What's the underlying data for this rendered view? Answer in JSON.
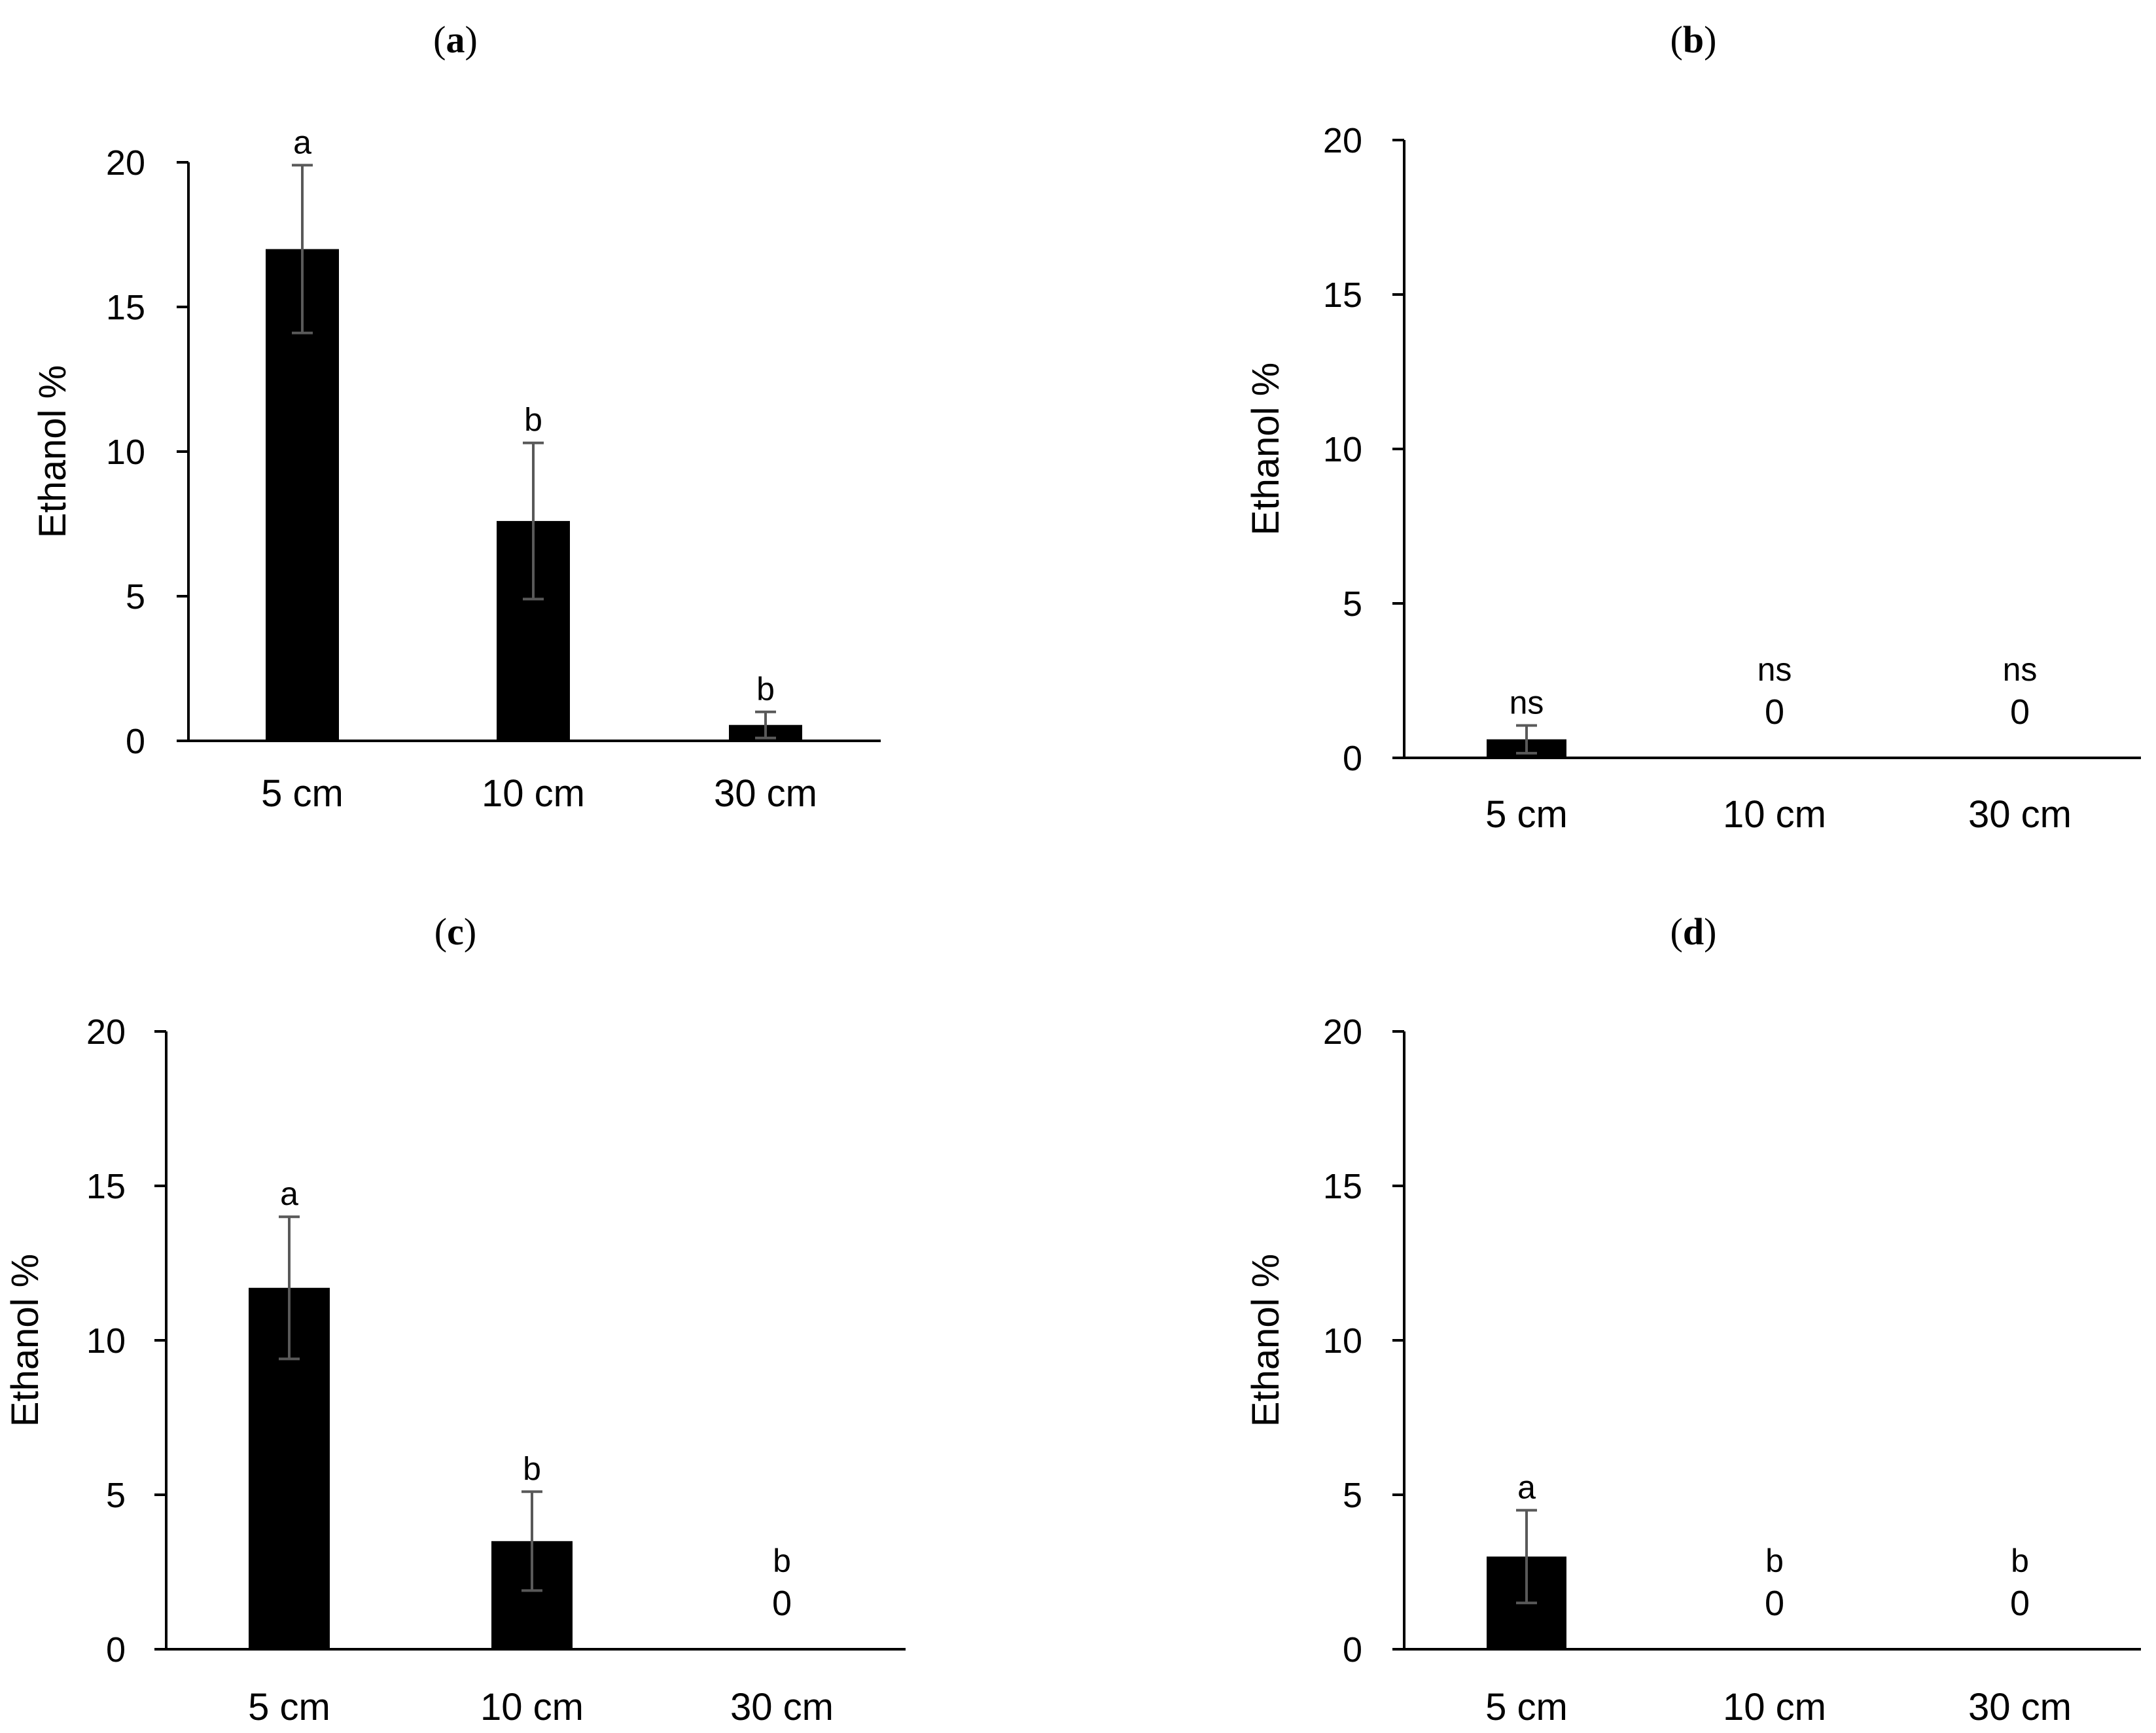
{
  "chart_data": [
    {
      "type": "bar",
      "panel_label": "a",
      "ylabel": "Ethanol %",
      "ylim": [
        0,
        20
      ],
      "yticks": [
        "0",
        "5",
        "10",
        "15",
        "20"
      ],
      "categories": [
        "5 cm",
        "10 cm",
        "30 cm"
      ],
      "values": [
        17.0,
        7.6,
        0.55
      ],
      "errors": [
        2.9,
        2.7,
        0.45
      ],
      "significance": [
        "a",
        "b",
        "b"
      ],
      "value_labels": [
        "",
        "",
        ""
      ]
    },
    {
      "type": "bar",
      "panel_label": "b",
      "ylabel": "Ethanol %",
      "ylim": [
        0,
        20
      ],
      "yticks": [
        "0",
        "5",
        "10",
        "15",
        "20"
      ],
      "categories": [
        "5 cm",
        "10 cm",
        "30 cm"
      ],
      "values": [
        0.6,
        0,
        0
      ],
      "errors": [
        0.45,
        0,
        0
      ],
      "significance": [
        "ns",
        "ns",
        "ns"
      ],
      "value_labels": [
        "",
        "0",
        "0"
      ]
    },
    {
      "type": "bar",
      "panel_label": "c",
      "ylabel": "Ethanol %",
      "ylim": [
        0,
        20
      ],
      "yticks": [
        "0",
        "5",
        "10",
        "15",
        "20"
      ],
      "categories": [
        "5 cm",
        "10 cm",
        "30 cm"
      ],
      "values": [
        11.7,
        3.5,
        0
      ],
      "errors": [
        2.3,
        1.6,
        0
      ],
      "significance": [
        "a",
        "b",
        "b"
      ],
      "value_labels": [
        "",
        "",
        "0"
      ]
    },
    {
      "type": "bar",
      "panel_label": "d",
      "ylabel": "Ethanol %",
      "ylim": [
        0,
        20
      ],
      "yticks": [
        "0",
        "5",
        "10",
        "15",
        "20"
      ],
      "categories": [
        "5 cm",
        "10 cm",
        "30 cm"
      ],
      "values": [
        3.0,
        0,
        0
      ],
      "errors": [
        1.5,
        0,
        0
      ],
      "significance": [
        "a",
        "b",
        "b"
      ],
      "value_labels": [
        "",
        "0",
        "0"
      ]
    }
  ],
  "colors": {
    "bar": "#000000",
    "axis": "#000000",
    "error_bar": "#595959"
  }
}
